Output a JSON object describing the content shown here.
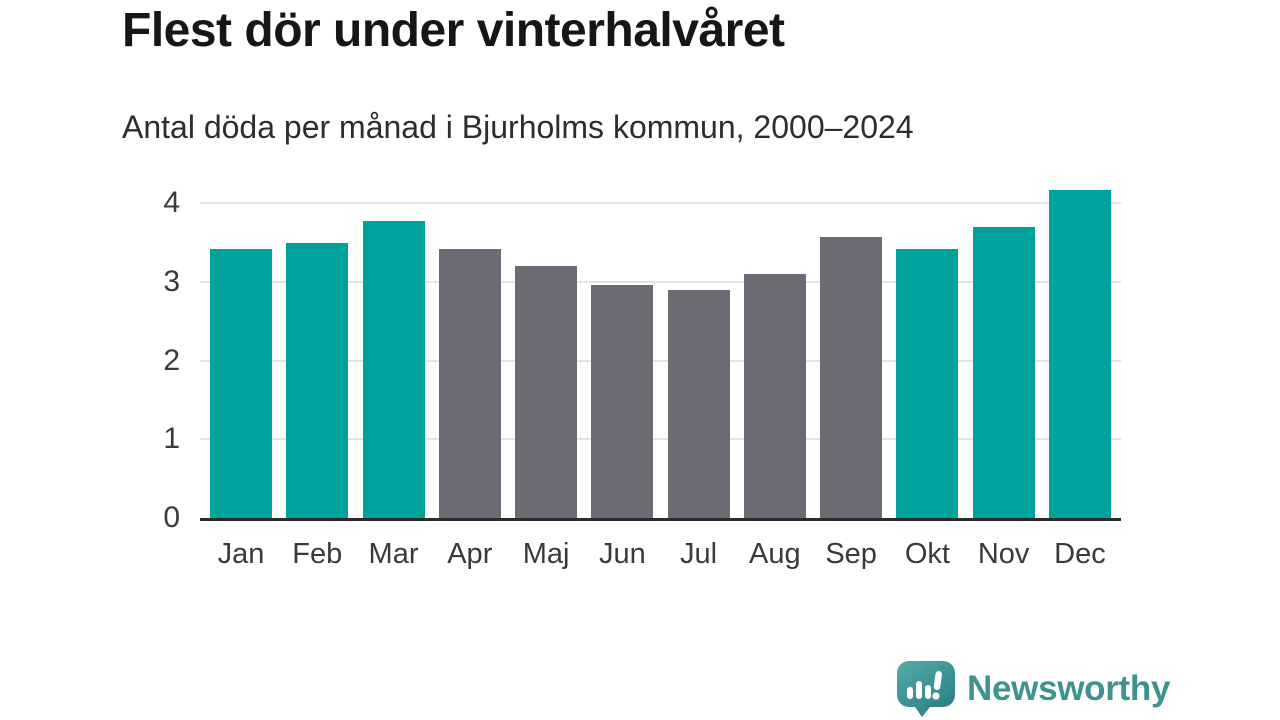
{
  "chart_data": {
    "type": "bar",
    "title": "Flest dör under vinterhalvåret",
    "subtitle": "Antal döda per månad i Bjurholms kommun, 2000–2024",
    "categories": [
      "Jan",
      "Feb",
      "Mar",
      "Apr",
      "Maj",
      "Jun",
      "Jul",
      "Aug",
      "Sep",
      "Okt",
      "Nov",
      "Dec"
    ],
    "values": [
      3.41,
      3.49,
      3.77,
      3.41,
      3.2,
      2.96,
      2.89,
      3.1,
      3.57,
      3.41,
      3.7,
      4.17
    ],
    "highlighted": [
      true,
      true,
      true,
      false,
      false,
      false,
      false,
      false,
      false,
      true,
      true,
      true
    ],
    "xlabel": "",
    "ylabel": "",
    "ylim": [
      0,
      4
    ],
    "yticks": [
      0,
      1,
      2,
      3,
      4
    ],
    "grid": true,
    "legend": "none",
    "colors": {
      "highlight": "#00a29b",
      "muted": "#6e6a73",
      "gridline": "#e4e4e4",
      "axis": "#2b2b2b",
      "tick_text": "#3a3a3a"
    }
  },
  "branding": {
    "name": "Newsworthy",
    "icon": "newsworthy-speech-bubble-bar-chart-icon",
    "icon_gradient": [
      "#56aca6",
      "#2d7f86"
    ],
    "text_color": "#3d938f"
  }
}
